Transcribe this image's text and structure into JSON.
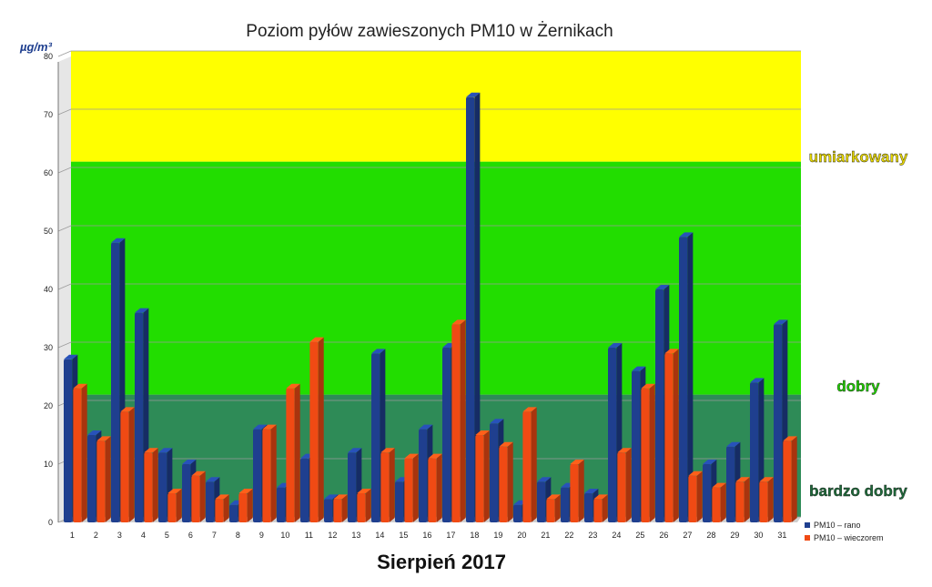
{
  "chart_data": {
    "type": "bar",
    "title": "Poziom pyłów zawieszonych PM10 w Żernikach",
    "ylabel": "µg/m³",
    "xlabel": "Sierpień 2017",
    "ylim": [
      0,
      80
    ],
    "yticks": [
      0,
      10,
      20,
      30,
      40,
      50,
      60,
      70,
      80
    ],
    "categories": [
      "1",
      "2",
      "3",
      "4",
      "5",
      "6",
      "7",
      "8",
      "9",
      "10",
      "11",
      "12",
      "13",
      "14",
      "15",
      "16",
      "17",
      "18",
      "19",
      "20",
      "21",
      "22",
      "23",
      "24",
      "25",
      "26",
      "27",
      "28",
      "29",
      "30",
      "31"
    ],
    "series": [
      {
        "name": "PM10 – rano",
        "color": "#1f3f8f",
        "values": [
          28,
          15,
          48,
          36,
          12,
          10,
          7,
          3,
          16,
          6,
          11,
          4,
          12,
          29,
          7,
          16,
          30,
          73,
          17,
          3,
          7,
          6,
          5,
          30,
          26,
          40,
          49,
          10,
          13,
          24,
          34
        ]
      },
      {
        "name": "PM10 – wieczorem",
        "color": "#f04a14",
        "values": [
          23,
          14,
          19,
          12,
          5,
          8,
          4,
          5,
          16,
          23,
          31,
          4,
          5,
          12,
          11,
          11,
          34,
          15,
          13,
          19,
          4,
          10,
          4,
          12,
          23,
          29,
          8,
          6,
          7,
          7,
          14
        ]
      }
    ],
    "zones": [
      {
        "label": "bardzo dobry",
        "from": 0,
        "to": 21,
        "color": "#2e8b57",
        "text_color": "#1e6b3a"
      },
      {
        "label": "dobry",
        "from": 21,
        "to": 61,
        "color": "#22dd00",
        "text_color": "#22cc00"
      },
      {
        "label": "umiarkowany",
        "from": 61,
        "to": 80,
        "color": "#ffff00",
        "text_color": "#e8d800"
      }
    ],
    "legend_position": "bottom-right",
    "grid": true
  }
}
